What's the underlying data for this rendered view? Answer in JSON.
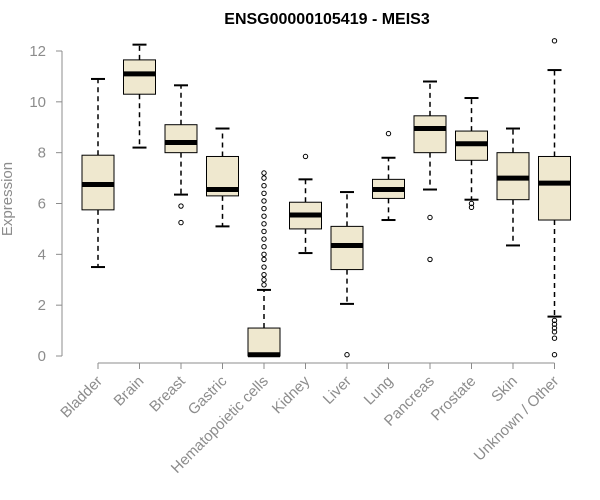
{
  "chart_data": {
    "type": "boxplot",
    "title": "ENSG00000105419 - MEIS3",
    "xlabel": "",
    "ylabel": "Expression",
    "ylim": [
      0,
      12.3
    ],
    "yticks": [
      0,
      2,
      4,
      6,
      8,
      10,
      12
    ],
    "grid": false,
    "box_color": "#efe8cf",
    "categories": [
      "Bladder",
      "Brain",
      "Breast",
      "Gastric",
      "Hematopoietic cells",
      "Kidney",
      "Liver",
      "Lung",
      "Pancreas",
      "Prostate",
      "Skin",
      "Unknown / Other"
    ],
    "boxes": [
      {
        "category": "Bladder",
        "whisker_low": 3.5,
        "q1": 5.75,
        "median": 6.75,
        "q3": 7.9,
        "whisker_high": 10.9,
        "outliers": []
      },
      {
        "category": "Brain",
        "whisker_low": 8.2,
        "q1": 10.3,
        "median": 11.1,
        "q3": 11.65,
        "whisker_high": 12.25,
        "outliers": []
      },
      {
        "category": "Breast",
        "whisker_low": 6.35,
        "q1": 8.0,
        "median": 8.4,
        "q3": 9.1,
        "whisker_high": 10.65,
        "outliers": [
          5.9,
          5.25
        ]
      },
      {
        "category": "Gastric",
        "whisker_low": 5.1,
        "q1": 6.3,
        "median": 6.55,
        "q3": 7.85,
        "whisker_high": 8.95,
        "outliers": []
      },
      {
        "category": "Hematopoietic cells",
        "whisker_low": 0,
        "q1": 0,
        "median": 0.05,
        "q3": 1.1,
        "whisker_high": 2.6,
        "outliers": [
          2.8,
          3.0,
          3.2,
          3.5,
          3.8,
          4.0,
          4.3,
          4.6,
          4.9,
          5.2,
          5.5,
          5.8,
          6.1,
          6.4,
          6.7,
          7.0,
          7.2
        ]
      },
      {
        "category": "Kidney",
        "whisker_low": 4.05,
        "q1": 5.0,
        "median": 5.55,
        "q3": 6.05,
        "whisker_high": 6.95,
        "outliers": [
          7.85
        ]
      },
      {
        "category": "Liver",
        "whisker_low": 2.05,
        "q1": 3.4,
        "median": 4.35,
        "q3": 5.1,
        "whisker_high": 6.45,
        "outliers": [
          0.05
        ]
      },
      {
        "category": "Lung",
        "whisker_low": 5.35,
        "q1": 6.2,
        "median": 6.55,
        "q3": 6.95,
        "whisker_high": 7.8,
        "outliers": [
          8.75
        ]
      },
      {
        "category": "Pancreas",
        "whisker_low": 6.55,
        "q1": 8.0,
        "median": 8.95,
        "q3": 9.45,
        "whisker_high": 10.8,
        "outliers": [
          5.45,
          3.8
        ]
      },
      {
        "category": "Prostate",
        "whisker_low": 6.15,
        "q1": 7.7,
        "median": 8.35,
        "q3": 8.85,
        "whisker_high": 10.15,
        "outliers": [
          6.0,
          5.85
        ]
      },
      {
        "category": "Skin",
        "whisker_low": 4.35,
        "q1": 6.15,
        "median": 7.0,
        "q3": 8.0,
        "whisker_high": 8.95,
        "outliers": []
      },
      {
        "category": "Unknown / Other",
        "whisker_low": 1.55,
        "q1": 5.35,
        "median": 6.8,
        "q3": 7.85,
        "whisker_high": 11.25,
        "outliers": [
          1.4,
          1.25,
          1.1,
          0.95,
          0.7,
          0.05,
          12.4
        ]
      }
    ]
  }
}
